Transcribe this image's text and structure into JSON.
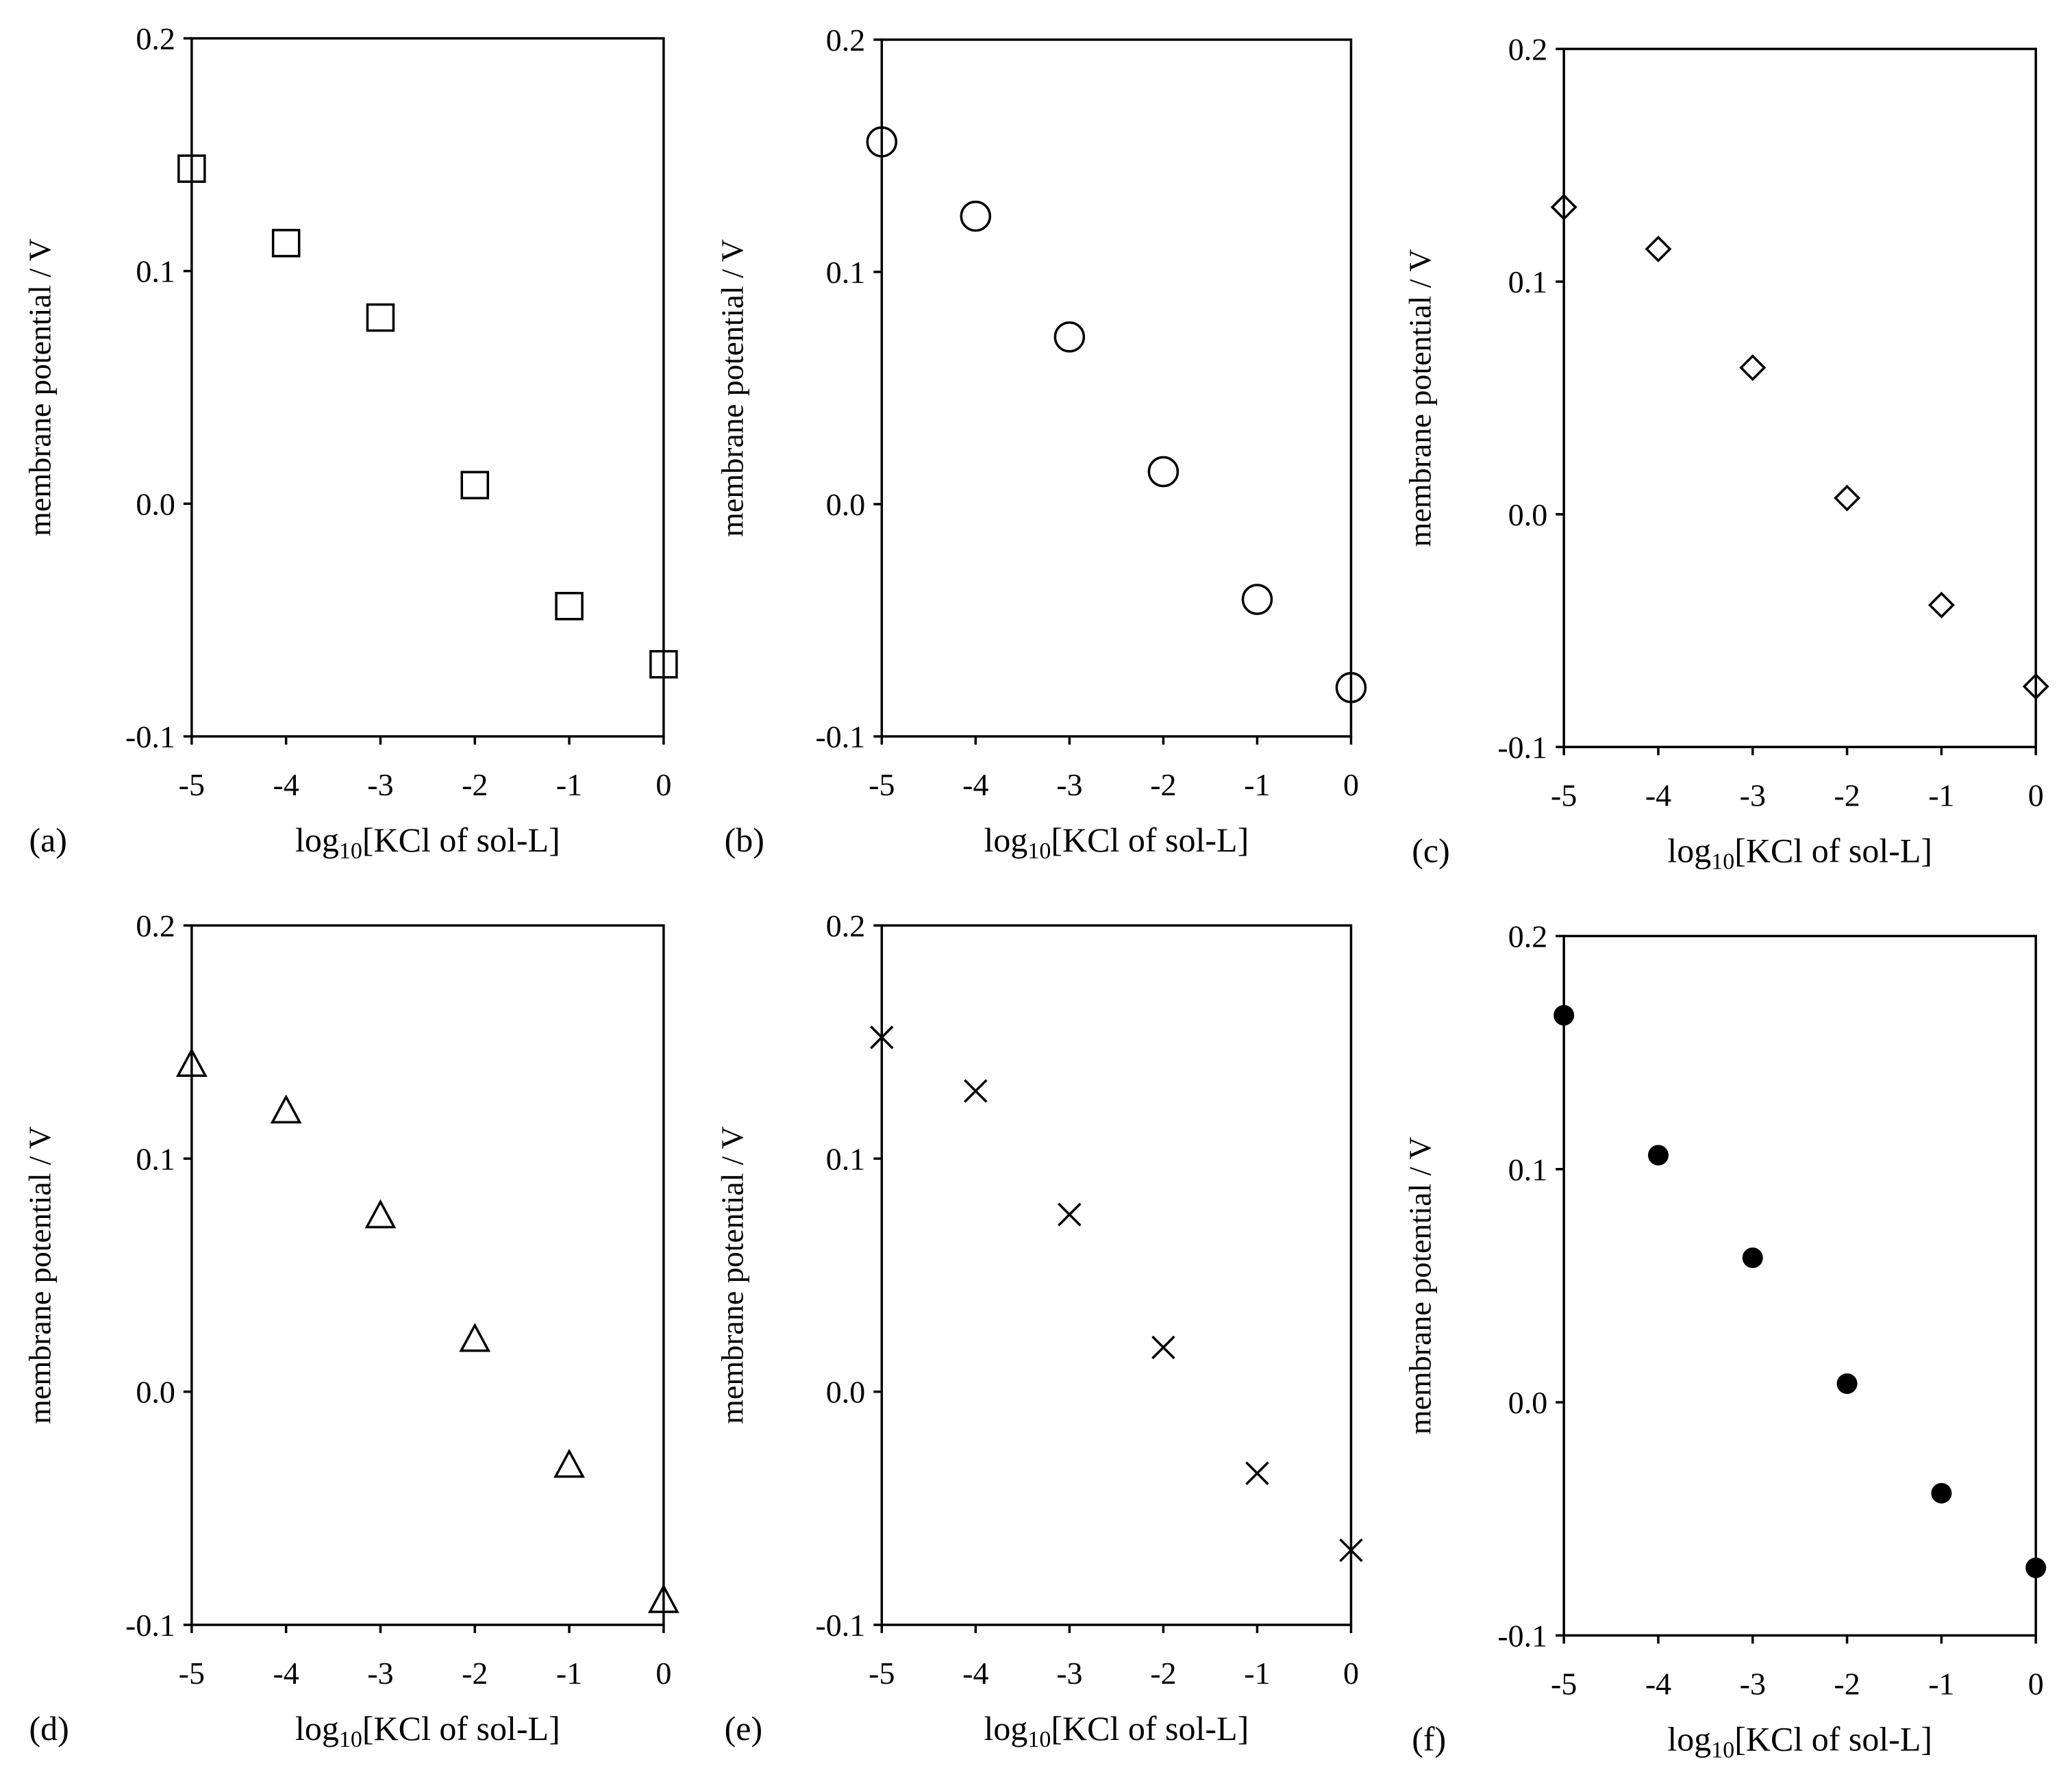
{
  "panel_labels": [
    "(a)",
    "(b)",
    "(c)",
    "(d)",
    "(e)",
    "(f)"
  ],
  "chart_data": [
    {
      "type": "scatter",
      "panel": "(a)",
      "marker": "square",
      "xlabel_main": "log",
      "xlabel_sub": "10",
      "xlabel_rest": "[KCl of sol-L]",
      "ylabel": "membrane potential / V",
      "xlim": [
        -5,
        0
      ],
      "ylim": [
        -0.1,
        0.2
      ],
      "xticks": [
        "-5",
        "-4",
        "-3",
        "-2",
        "-1",
        "0"
      ],
      "yticks": [
        "-0.1",
        "0.0",
        "0.1",
        "0.2"
      ],
      "x": [
        -5,
        -4,
        -3,
        -2,
        -1,
        0
      ],
      "y": [
        0.144,
        0.112,
        0.08,
        0.008,
        -0.044,
        -0.069
      ]
    },
    {
      "type": "scatter",
      "panel": "(b)",
      "marker": "circle",
      "xlabel_main": "log",
      "xlabel_sub": "10",
      "xlabel_rest": "[KCl of sol-L]",
      "ylabel": "membrane potential / V",
      "xlim": [
        -5,
        0
      ],
      "ylim": [
        -0.1,
        0.2
      ],
      "xticks": [
        "-5",
        "-4",
        "-3",
        "-2",
        "-1",
        "0"
      ],
      "yticks": [
        "-0.1",
        "0.0",
        "0.1",
        "0.2"
      ],
      "x": [
        -5,
        -4,
        -3,
        -2,
        -1,
        0
      ],
      "y": [
        0.156,
        0.124,
        0.072,
        0.014,
        -0.041,
        -0.079
      ]
    },
    {
      "type": "scatter",
      "panel": "(c)",
      "marker": "diamond",
      "xlabel_main": "log",
      "xlabel_sub": "10",
      "xlabel_rest": "[KCl of sol-L]",
      "ylabel": "membrane potential / V",
      "xlim": [
        -5,
        0
      ],
      "ylim": [
        -0.1,
        0.2
      ],
      "xticks": [
        "-5",
        "-4",
        "-3",
        "-2",
        "-1",
        "0"
      ],
      "yticks": [
        "-0.1",
        "0.0",
        "0.1",
        "0.2"
      ],
      "x": [
        -5,
        -4,
        -3,
        -2,
        -1,
        0
      ],
      "y": [
        0.132,
        0.114,
        0.063,
        0.007,
        -0.039,
        -0.074
      ]
    },
    {
      "type": "scatter",
      "panel": "(d)",
      "marker": "triangle",
      "xlabel_main": "log",
      "xlabel_sub": "10",
      "xlabel_rest": "[KCl of sol-L]",
      "ylabel": "membrane potential / V",
      "xlim": [
        -5,
        0
      ],
      "ylim": [
        -0.1,
        0.2
      ],
      "xticks": [
        "-5",
        "-4",
        "-3",
        "-2",
        "-1",
        "0"
      ],
      "yticks": [
        "-0.1",
        "0.0",
        "0.1",
        "0.2"
      ],
      "x": [
        -5,
        -4,
        -3,
        -2,
        -1,
        0
      ],
      "y": [
        0.14,
        0.12,
        0.075,
        0.022,
        -0.032,
        -0.09
      ]
    },
    {
      "type": "scatter",
      "panel": "(e)",
      "marker": "cross",
      "xlabel_main": "log",
      "xlabel_sub": "10",
      "xlabel_rest": "[KCl of sol-L]",
      "ylabel": "membrane potential / V",
      "xlim": [
        -5,
        0
      ],
      "ylim": [
        -0.1,
        0.2
      ],
      "xticks": [
        "-5",
        "-4",
        "-3",
        "-2",
        "-1",
        "0"
      ],
      "yticks": [
        "-0.1",
        "0.0",
        "0.1",
        "0.2"
      ],
      "x": [
        -5,
        -4,
        -3,
        -2,
        -1,
        0
      ],
      "y": [
        0.152,
        0.129,
        0.076,
        0.019,
        -0.035,
        -0.068
      ]
    },
    {
      "type": "scatter",
      "panel": "(f)",
      "marker": "filled-circle",
      "xlabel_main": "log",
      "xlabel_sub": "10",
      "xlabel_rest": "[KCl of sol-L]",
      "ylabel": "membrane potential / V",
      "xlim": [
        -5,
        0
      ],
      "ylim": [
        -0.1,
        0.2
      ],
      "xticks": [
        "-5",
        "-4",
        "-3",
        "-2",
        "-1",
        "0"
      ],
      "yticks": [
        "-0.1",
        "0.0",
        "0.1",
        "0.2"
      ],
      "x": [
        -5,
        -4,
        -3,
        -2,
        -1,
        0
      ],
      "y": [
        0.166,
        0.106,
        0.062,
        0.008,
        -0.039,
        -0.071
      ]
    }
  ]
}
